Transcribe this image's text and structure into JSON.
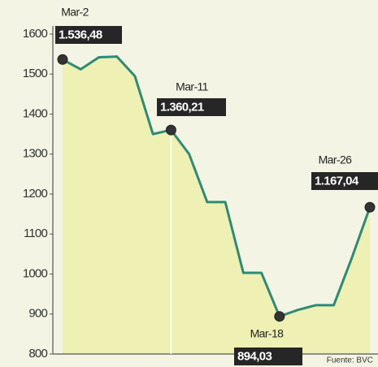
{
  "chart_data": {
    "type": "line",
    "categories": [
      "Mar-2",
      null,
      null,
      null,
      null,
      null,
      "Mar-11",
      null,
      null,
      null,
      null,
      null,
      "Mar-18",
      null,
      null,
      null,
      null,
      "Mar-26"
    ],
    "series": [
      {
        "name": null,
        "color": "#2f8a74",
        "values": [
          1536.48,
          1512,
          1542,
          1544,
          1495,
          1350,
          1360.21,
          1300,
          1180,
          1180,
          1003,
          1003,
          894.03,
          910,
          922,
          922,
          1040,
          1167.04
        ],
        "value_labels": [
          "1.536,48",
          null,
          null,
          null,
          null,
          null,
          "1.360,21",
          null,
          null,
          null,
          null,
          null,
          "894,03",
          null,
          null,
          null,
          null,
          "1.167,04"
        ]
      }
    ],
    "ylim": [
      800,
      1600
    ],
    "yticks": [
      800,
      900,
      1000,
      1100,
      1200,
      1300,
      1400,
      1500,
      1600
    ],
    "fill": "#eef0b4",
    "source": "Fuente: BVC"
  }
}
